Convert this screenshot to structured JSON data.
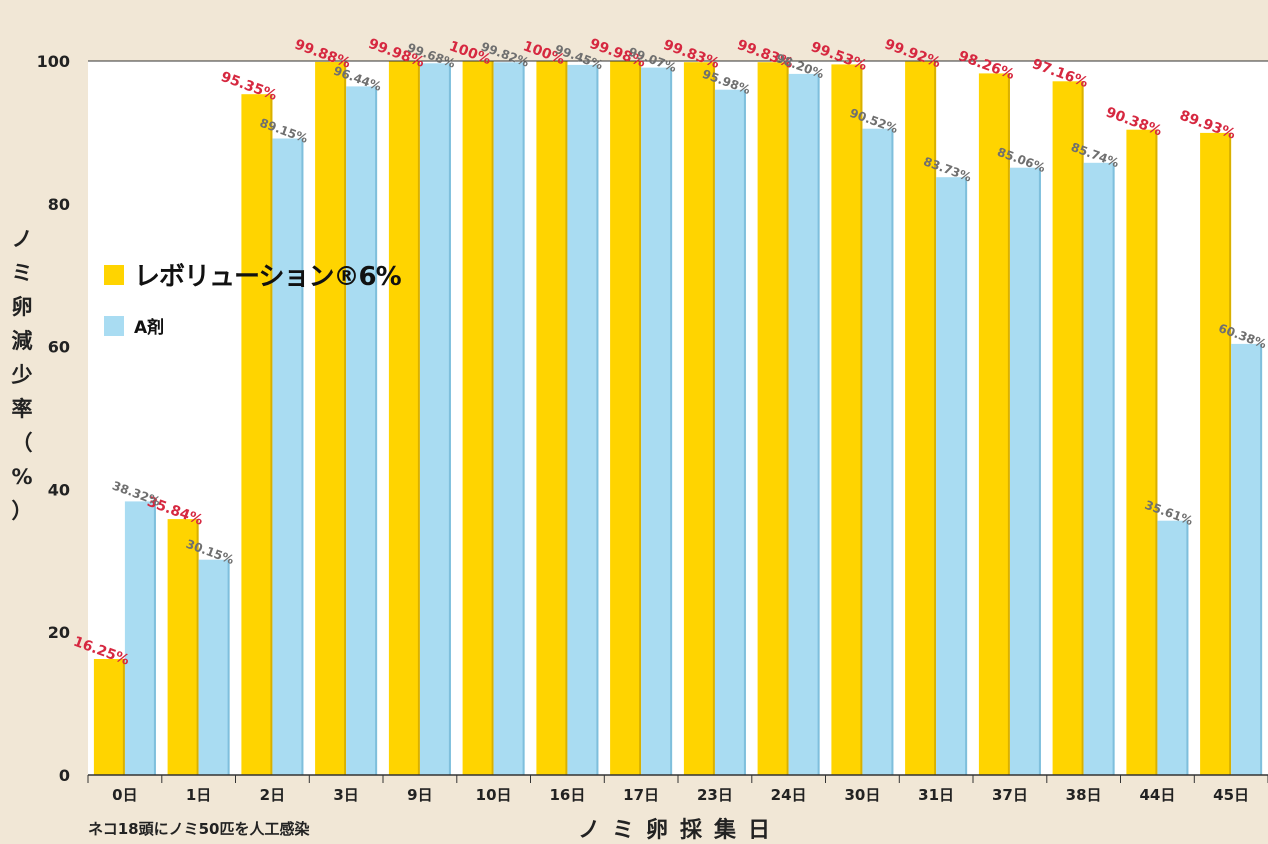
{
  "chart_data": {
    "type": "bar",
    "title": "",
    "xlabel": "ノミ卵採集日",
    "ylabel": "ノミ卵減少率（%）",
    "ylim": [
      0,
      100
    ],
    "yticks": [
      "0",
      "20",
      "40",
      "60",
      "80",
      "100"
    ],
    "categories": [
      "0日",
      "1日",
      "2日",
      "3日",
      "9日",
      "10日",
      "16日",
      "17日",
      "23日",
      "24日",
      "30日",
      "31日",
      "37日",
      "38日",
      "44日",
      "45日"
    ],
    "series": [
      {
        "name": "レボリューション®6%",
        "color": "#ffd400",
        "label_color": "#d62840",
        "values": [
          16.25,
          35.84,
          95.35,
          99.88,
          99.98,
          100,
          100,
          99.98,
          99.83,
          99.83,
          99.53,
          99.92,
          98.26,
          97.16,
          90.38,
          89.93
        ],
        "labels": [
          "16.25%",
          "35.84%",
          "95.35%",
          "99.88%",
          "99.98%",
          "100%",
          "100%",
          "99.98%",
          "99.83%",
          "99.83%",
          "99.53%",
          "99.92%",
          "98.26%",
          "97.16%",
          "90.38%",
          "89.93%"
        ]
      },
      {
        "name": "A剤",
        "color": "#a9dcf2",
        "label_color": "#6f6f6f",
        "values": [
          38.32,
          30.15,
          89.15,
          96.44,
          99.68,
          99.82,
          99.45,
          99.07,
          95.98,
          98.2,
          90.52,
          83.73,
          85.06,
          85.74,
          35.61,
          60.38
        ],
        "labels": [
          "38.32%",
          "30.15%",
          "89.15%",
          "96.44%",
          "99.68%",
          "99.82%",
          "99.45%",
          "99.07%",
          "95.98%",
          "98.20%",
          "90.52%",
          "83.73%",
          "85.06%",
          "85.74%",
          "35.61%",
          "60.38%"
        ]
      }
    ],
    "grid": false,
    "legend_position": "left-middle"
  },
  "legend": {
    "series1_name": "レボリューション®6%",
    "series2_name": "A剤"
  },
  "ylabel_chars": [
    "ノ",
    "ミ",
    "卵",
    "減",
    "少",
    "率",
    "（",
    "%",
    "）"
  ],
  "xtitle": "ノミ卵採集日",
  "footnote": "ネコ18頭にノミ50匹を人工感染"
}
